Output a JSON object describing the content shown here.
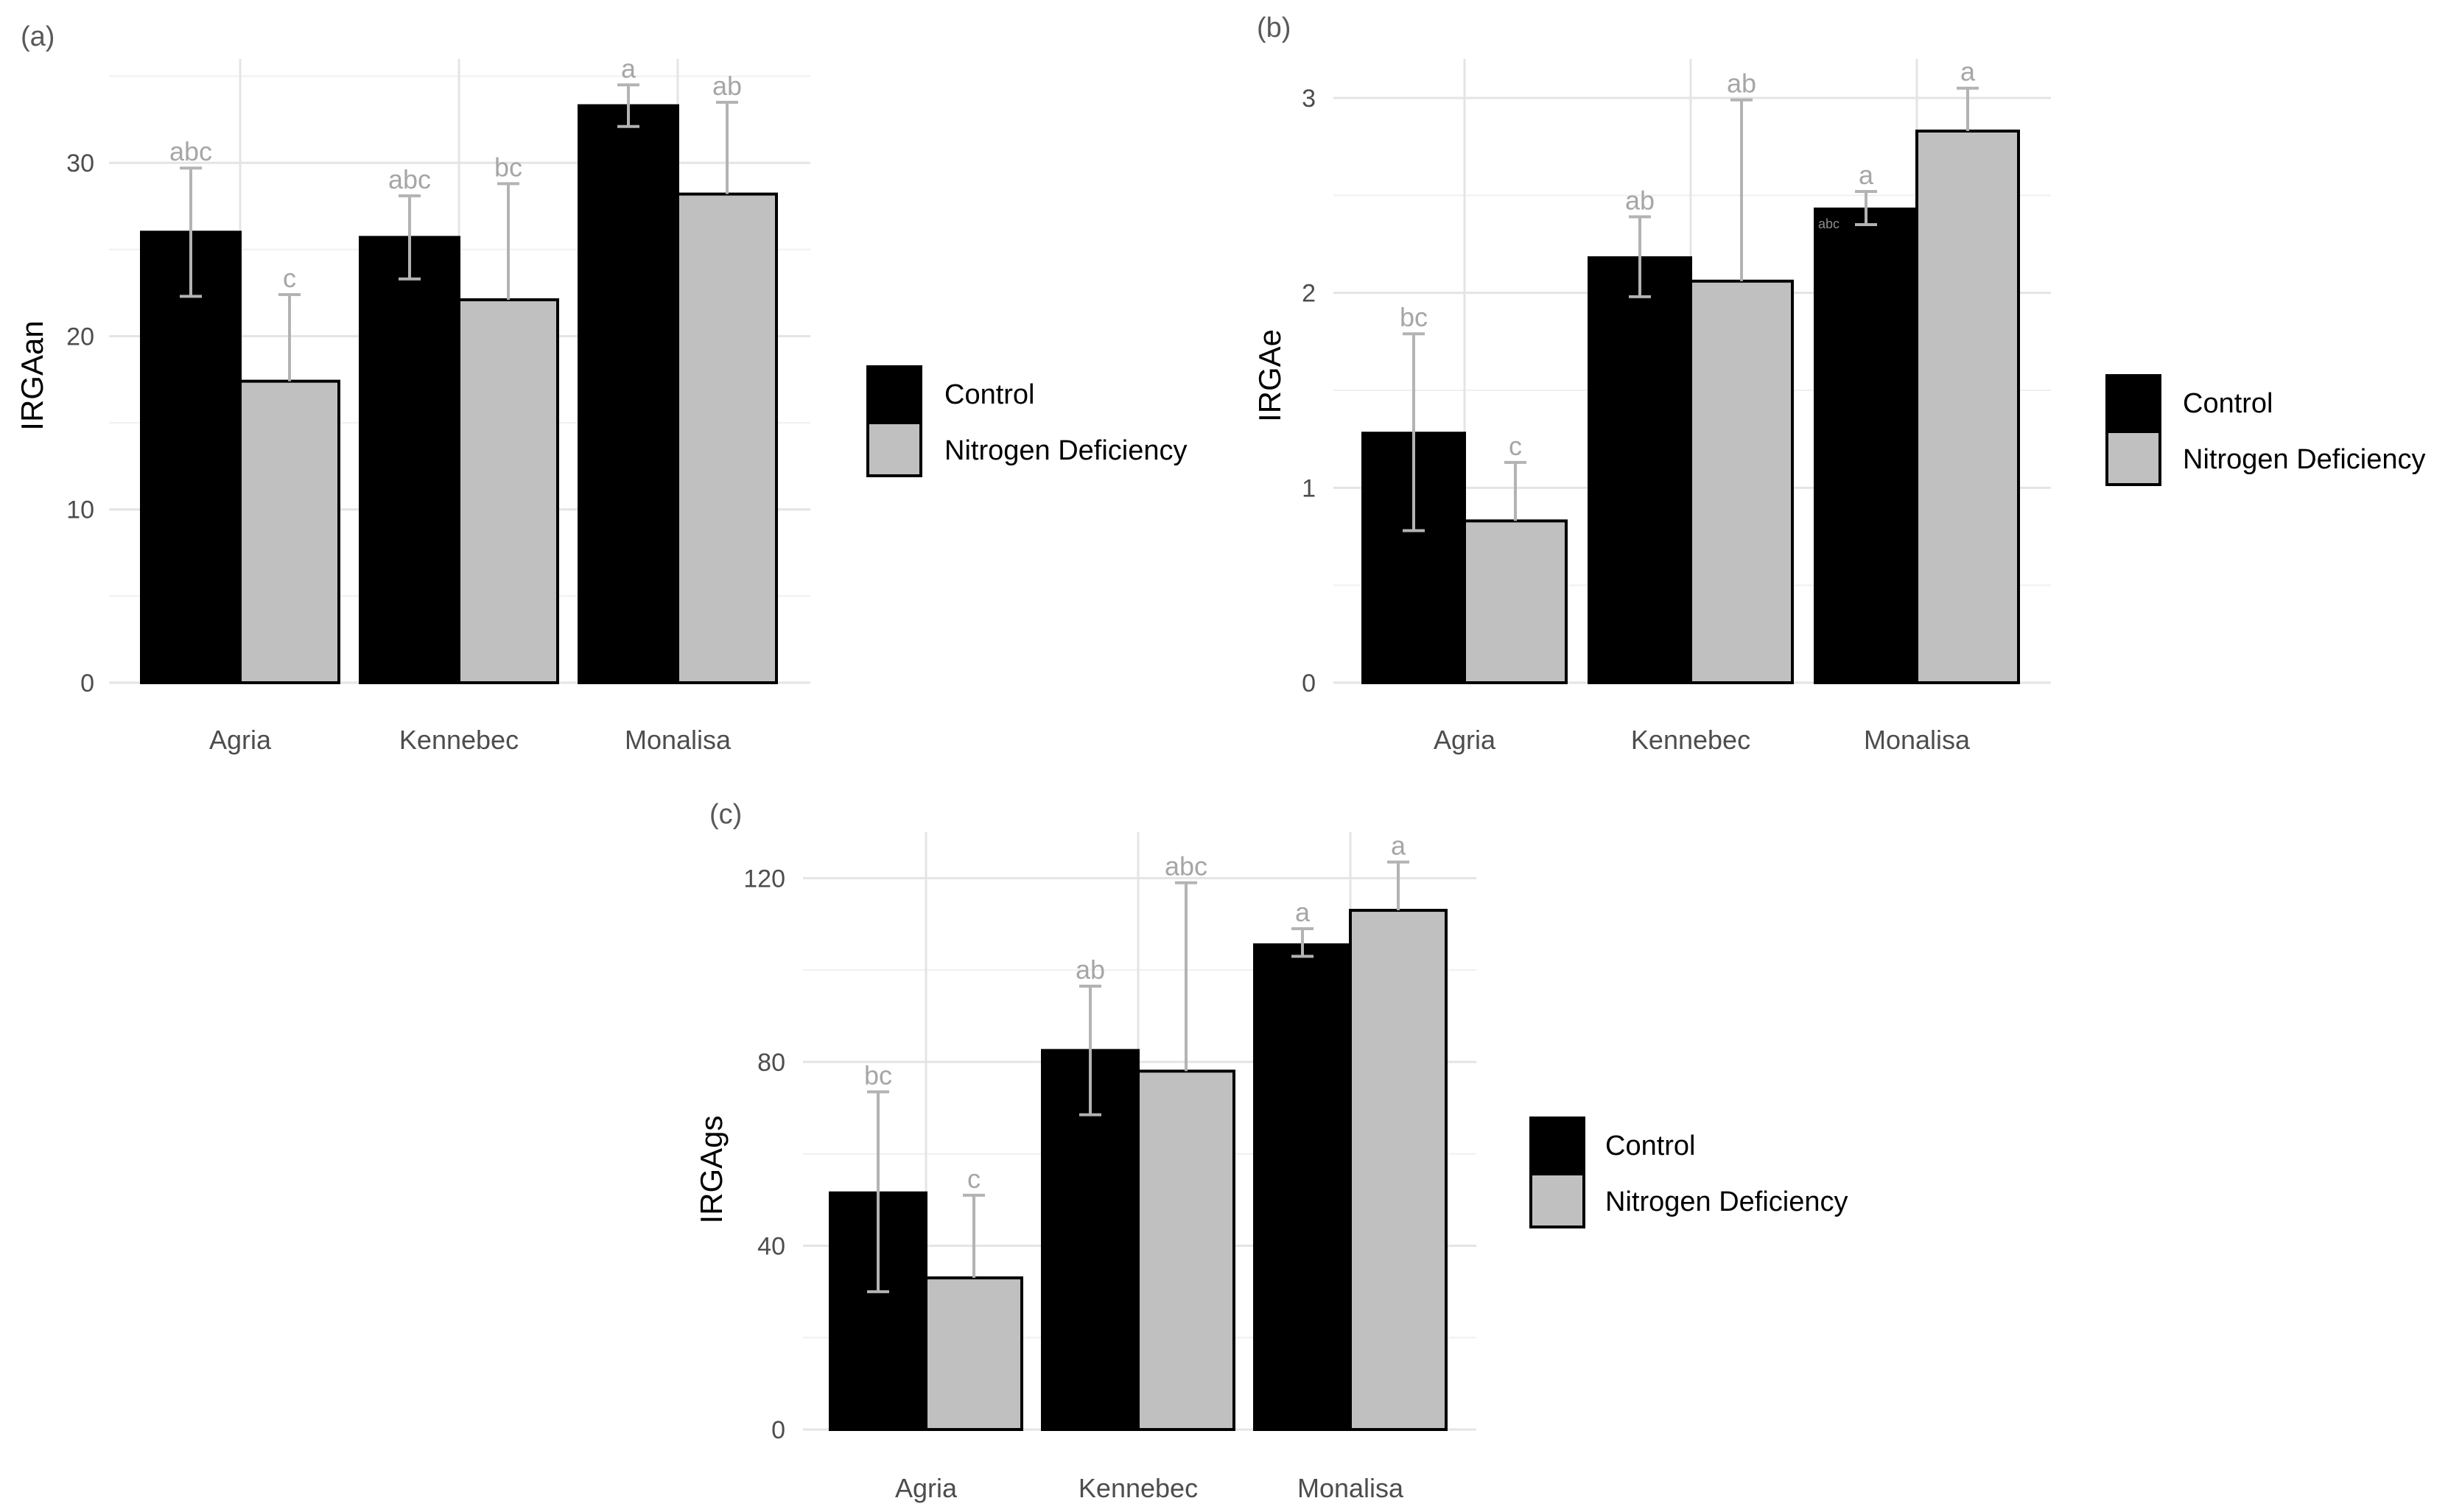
{
  "figure": {
    "colors": {
      "control": "#000000",
      "nitrogen": "#c0c0c0",
      "grid_major": "#e4e4e4",
      "grid_minor": "#f0f0f0",
      "axis_text": "#4d4d4d",
      "letter_text": "#a6a6a6",
      "errorbar": "#b3b3b3"
    }
  },
  "chart_data": [
    {
      "panel_label": "(a)",
      "type": "bar",
      "title": "",
      "xlabel": "",
      "ylabel": "IRGAan",
      "categories": [
        "Agria",
        "Kennebec",
        "Monalisa"
      ],
      "ylim": [
        0,
        36
      ],
      "yticks": [
        0,
        10,
        20,
        30
      ],
      "ytick_labels": [
        "0",
        "10",
        "20",
        "30"
      ],
      "grid": true,
      "legend": {
        "placement": "right",
        "entries": [
          "Control",
          "Nitrogen Deficiency"
        ]
      },
      "series": [
        {
          "name": "Control",
          "values": [
            26.0,
            25.7,
            33.3
          ],
          "err_low": [
            22.3,
            23.3,
            32.1
          ],
          "err_high": [
            29.7,
            28.1,
            34.5
          ],
          "letters": [
            "abc",
            "abc",
            "a"
          ]
        },
        {
          "name": "Nitrogen Deficiency",
          "values": [
            17.4,
            22.1,
            28.2
          ],
          "err_low": [
            17.4,
            22.1,
            28.2
          ],
          "err_high": [
            22.4,
            28.8,
            33.5
          ],
          "letters": [
            "c",
            "bc",
            "ab"
          ]
        }
      ]
    },
    {
      "panel_label": "(b)",
      "type": "bar",
      "title": "",
      "xlabel": "",
      "ylabel": "IRGAe",
      "categories": [
        "Agria",
        "Kennebec",
        "Monalisa"
      ],
      "ylim": [
        0,
        3.2
      ],
      "yticks": [
        0,
        1,
        2,
        3
      ],
      "ytick_labels": [
        "0",
        "1",
        "2",
        "3"
      ],
      "grid": true,
      "legend": {
        "placement": "right",
        "entries": [
          "Control",
          "Nitrogen Deficiency"
        ]
      },
      "extra_annotation": {
        "text": "abc",
        "series": 0,
        "category": 2
      },
      "series": [
        {
          "name": "Control",
          "values": [
            1.28,
            2.18,
            2.43
          ],
          "err_low": [
            0.78,
            1.98,
            2.35
          ],
          "err_high": [
            1.79,
            2.39,
            2.52
          ],
          "letters": [
            "bc",
            "ab",
            "a"
          ]
        },
        {
          "name": "Nitrogen Deficiency",
          "values": [
            0.83,
            2.06,
            2.83
          ],
          "err_low": [
            0.83,
            2.06,
            2.83
          ],
          "err_high": [
            1.13,
            2.99,
            3.05
          ],
          "letters": [
            "c",
            "ab",
            "a"
          ]
        }
      ]
    },
    {
      "panel_label": "(c)",
      "type": "bar",
      "title": "",
      "xlabel": "",
      "ylabel": "IRGAgs",
      "categories": [
        "Agria",
        "Kennebec",
        "Monalisa"
      ],
      "ylim": [
        0,
        130
      ],
      "yticks": [
        0,
        40,
        80,
        120
      ],
      "ytick_labels": [
        "0",
        "40",
        "80",
        "120"
      ],
      "grid": true,
      "legend": {
        "placement": "right",
        "entries": [
          "Control",
          "Nitrogen Deficiency"
        ]
      },
      "series": [
        {
          "name": "Control",
          "values": [
            51.5,
            82.5,
            105.5
          ],
          "err_low": [
            30.0,
            68.5,
            103.0
          ],
          "err_high": [
            73.5,
            96.5,
            109.0
          ],
          "letters": [
            "bc",
            "ab",
            "a"
          ]
        },
        {
          "name": "Nitrogen Deficiency",
          "values": [
            33.0,
            78.0,
            113.0
          ],
          "err_low": [
            33.0,
            78.0,
            113.0
          ],
          "err_high": [
            51.0,
            119.0,
            123.5
          ],
          "letters": [
            "c",
            "abc",
            "a"
          ]
        }
      ]
    }
  ]
}
